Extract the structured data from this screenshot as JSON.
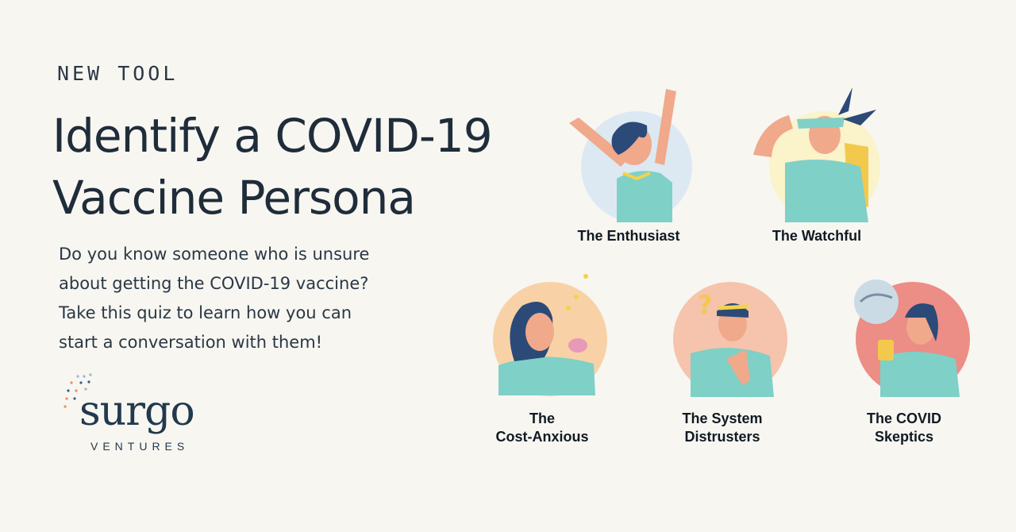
{
  "eyebrow": "NEW TOOL",
  "title": {
    "line1": "Identify a COVID-19",
    "line2": "Vaccine Persona"
  },
  "description": {
    "line1": "Do you know someone who is unsure",
    "line2": "about getting the COVID-19 vaccine?",
    "line3": "Take this quiz to learn how you can",
    "line4": "start a conversation with them!"
  },
  "logo": {
    "wordmark": "surgo",
    "subtitle": "VENTURES"
  },
  "personas": [
    {
      "name": "The Enthusiast",
      "icon": "enthusiast-illustration",
      "bg": "#dce9f2"
    },
    {
      "name": "The Watchful",
      "icon": "watchful-illustration",
      "bg": "#fbf3c9"
    },
    {
      "line1": "The",
      "line2": "Cost-Anxious",
      "icon": "cost-anxious-illustration",
      "bg": "#f8d2a6"
    },
    {
      "line1": "The System",
      "line2": "Distrusters",
      "icon": "system-distrusters-illustration",
      "bg": "#f6c3ac"
    },
    {
      "line1": "The COVID",
      "line2": "Skeptics",
      "icon": "covid-skeptics-illustration",
      "bg": "#ec8d86"
    }
  ],
  "colors": {
    "background": "#f7f6f1",
    "ink": "#1f2c3a",
    "teal": "#7fd0c7",
    "navy": "#2c4a78"
  }
}
